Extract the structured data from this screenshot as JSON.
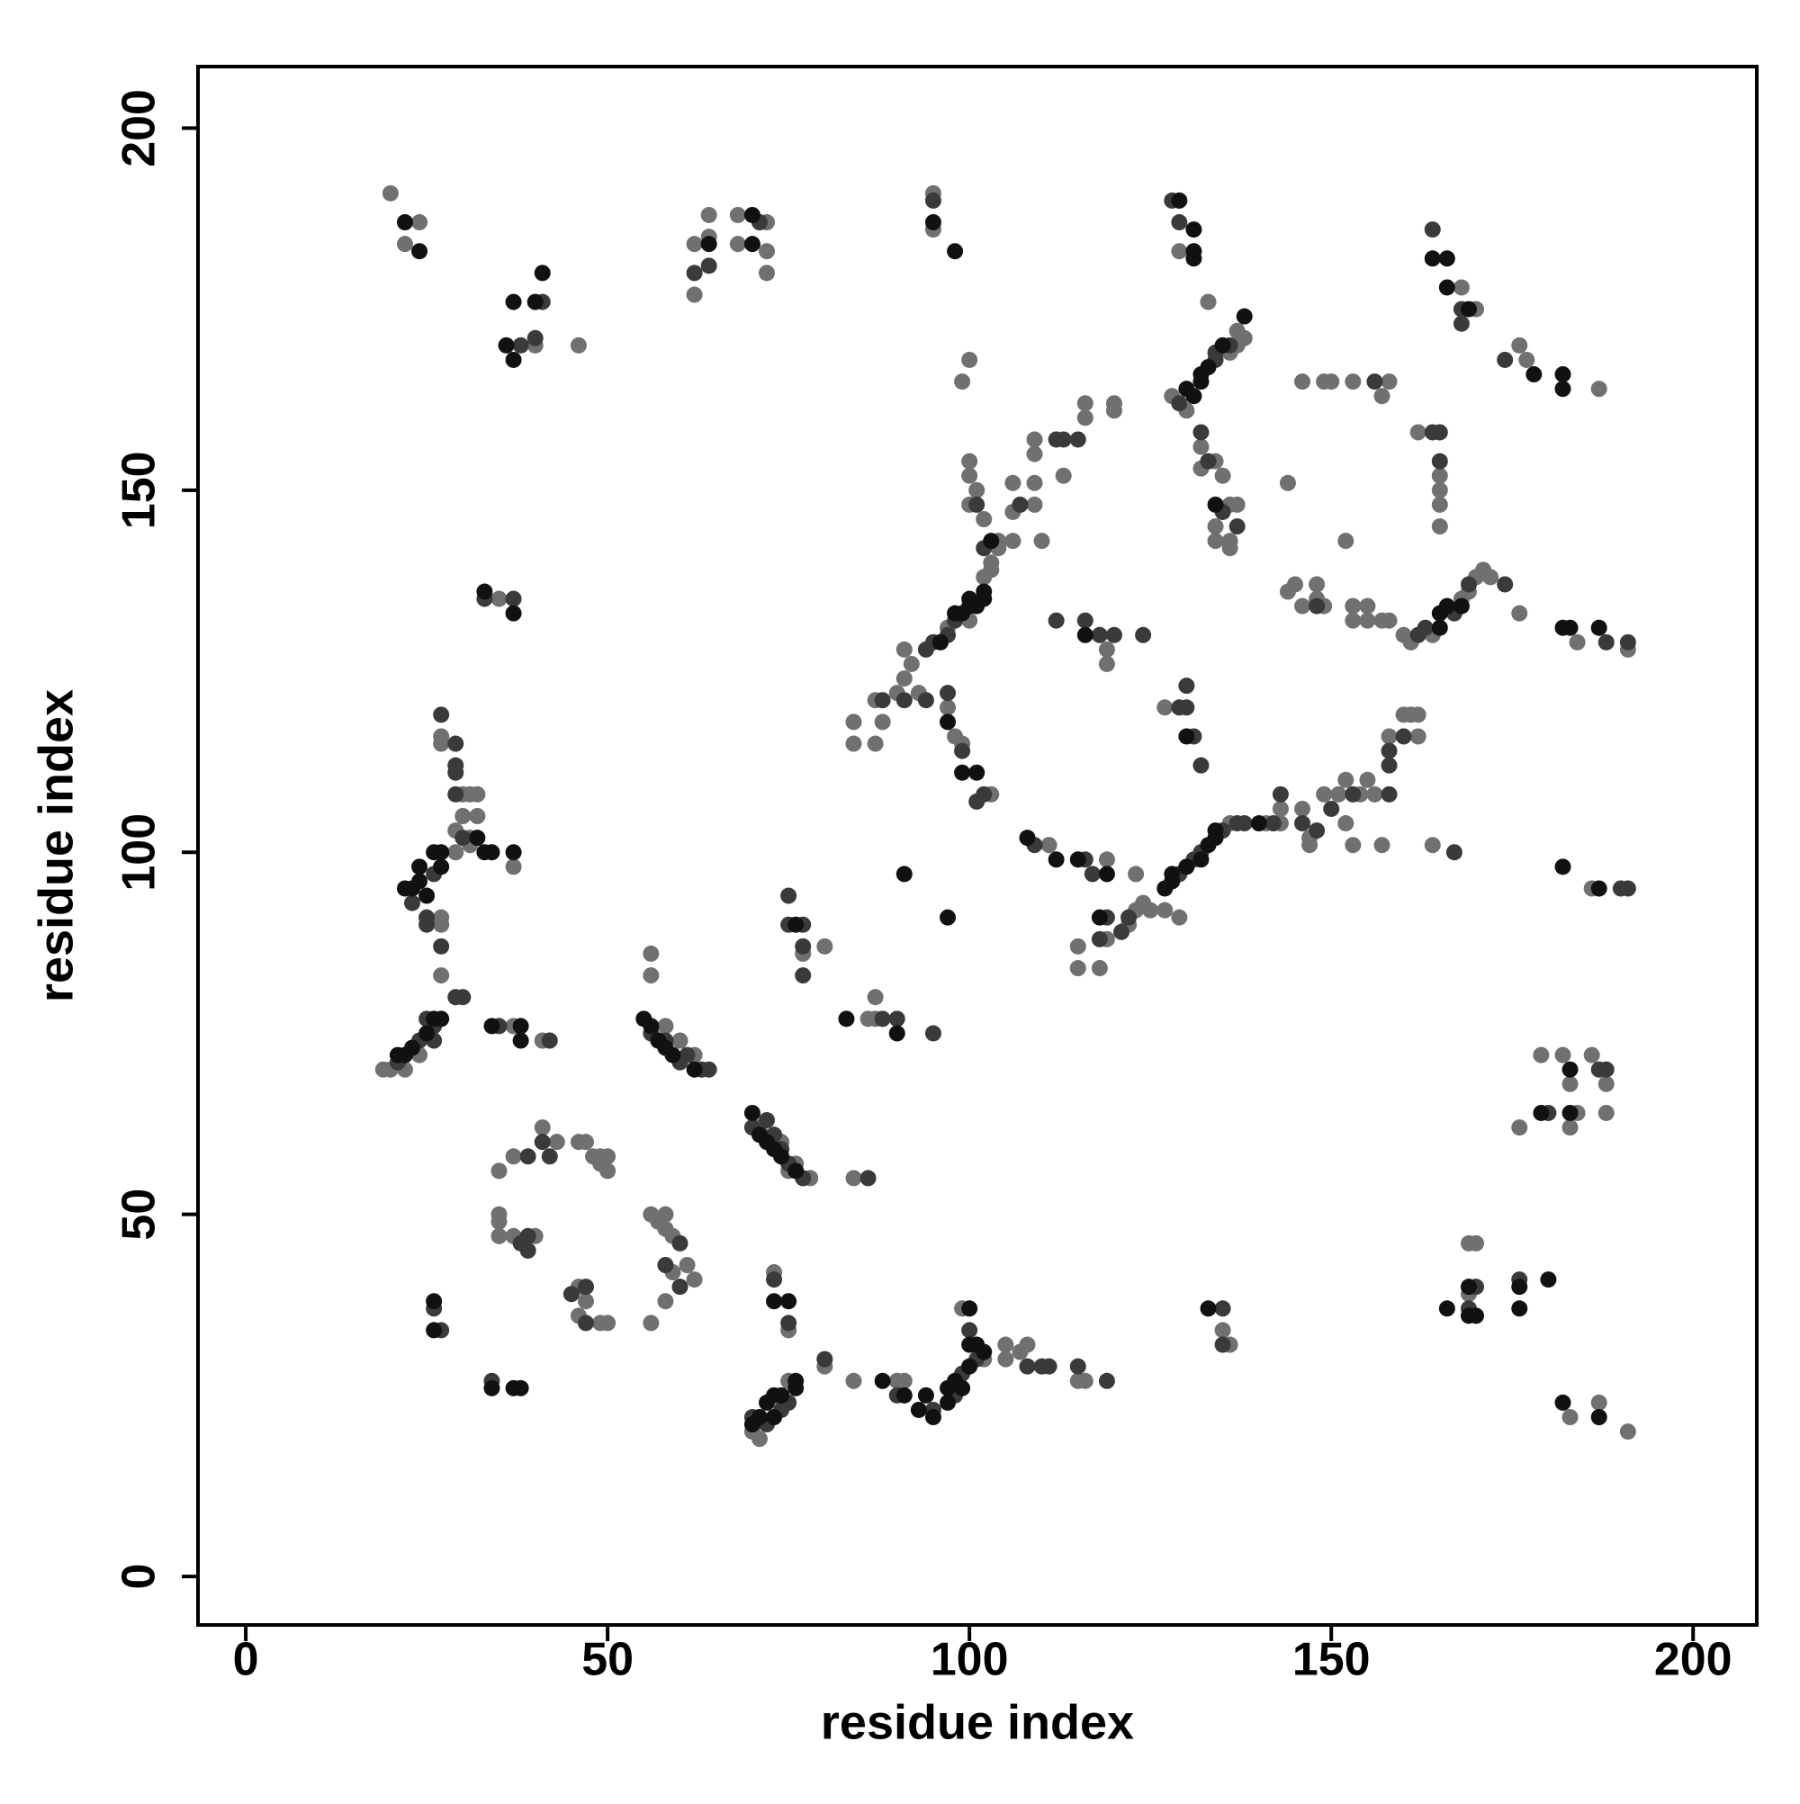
{
  "chart_data": {
    "type": "scatter",
    "xlabel": "residue index",
    "ylabel": "residue index",
    "xlim": [
      -6.6,
      208.8
    ],
    "ylim": [
      -6.7,
      208.5
    ],
    "xticks": [
      0,
      50,
      100,
      150,
      200
    ],
    "yticks": [
      0,
      50,
      100,
      150,
      200
    ],
    "grid": false,
    "series": [
      {
        "color": "#707070",
        "x": [
          20,
          24,
          22,
          40,
          46,
          62,
          62,
          64,
          64,
          68,
          68,
          72,
          72,
          72,
          95,
          95,
          129,
          168,
          170,
          176,
          177,
          187,
          128,
          130,
          137,
          137,
          138,
          136,
          133,
          132,
          132,
          134,
          134,
          134,
          136,
          136,
          137,
          136,
          135,
          162,
          165,
          165,
          165,
          165,
          146,
          149,
          150,
          153,
          158,
          157,
          144,
          152,
          145,
          144,
          146,
          148,
          148,
          149,
          153,
          153,
          155,
          155,
          157,
          158,
          160,
          161,
          164,
          168,
          169,
          170,
          171,
          172,
          176,
          184,
          191,
          84,
          84,
          87,
          87,
          88,
          90,
          91,
          92,
          91,
          97,
          100,
          102,
          103,
          103,
          104,
          101,
          100,
          100,
          100,
          102,
          104,
          106,
          106,
          106,
          109,
          109,
          109,
          109,
          110,
          113,
          116,
          116,
          120,
          120,
          93,
          97,
          99,
          100,
          98,
          99,
          103,
          111,
          119,
          123,
          119,
          123,
          124,
          125,
          127,
          129,
          115,
          115,
          118,
          122,
          136,
          141,
          143,
          143,
          146,
          147,
          147,
          149,
          151,
          152,
          152,
          153,
          154,
          155,
          156,
          157,
          158,
          160,
          161,
          162,
          162,
          164,
          119,
          119,
          127,
          27,
          27,
          30,
          31,
          32,
          30,
          32,
          29,
          31,
          31,
          29,
          27,
          27,
          27,
          37,
          37,
          41,
          19,
          20,
          22,
          24,
          35,
          58,
          60,
          62,
          56,
          56,
          71,
          74,
          75,
          76,
          78,
          77,
          80,
          86,
          87,
          87,
          84,
          35,
          37,
          41,
          43,
          46,
          47,
          48,
          49,
          50,
          50,
          49,
          35,
          35,
          35,
          37,
          40,
          56,
          57,
          58,
          58,
          59,
          59,
          61,
          62,
          58,
          56,
          46,
          47,
          46,
          49,
          50,
          70,
          71,
          75,
          73,
          75,
          80,
          84,
          90,
          91,
          99,
          102,
          105,
          105,
          108,
          107,
          115,
          116,
          135,
          136,
          169,
          169,
          170,
          183,
          187,
          191,
          176,
          179,
          182,
          183,
          184,
          183,
          186,
          188,
          188,
          186
        ],
        "values": [
          191,
          187,
          184,
          170,
          170,
          177,
          184,
          185,
          188,
          188,
          184,
          187,
          183,
          180,
          191,
          186,
          183,
          178,
          175,
          170,
          168,
          164,
          163,
          161,
          170,
          172,
          171,
          169,
          176,
          156,
          153,
          154,
          145,
          143,
          148,
          143,
          148,
          142,
          152,
          158,
          152,
          150,
          148,
          145,
          165,
          165,
          165,
          165,
          165,
          163,
          151,
          143,
          137,
          136,
          134,
          137,
          135,
          134,
          134,
          132,
          134,
          132,
          132,
          132,
          130,
          129,
          130,
          135,
          136,
          138,
          139,
          138,
          133,
          129,
          128,
          118,
          115,
          115,
          121,
          118,
          122,
          124,
          126,
          128,
          131,
          132,
          138,
          139,
          140,
          142,
          150,
          152,
          154,
          148,
          146,
          143,
          143,
          147,
          151,
          148,
          151,
          155,
          157,
          143,
          152,
          160,
          162,
          161,
          162,
          122,
          120,
          165,
          168,
          116,
          115,
          108,
          101,
          99,
          97,
          88,
          92,
          93,
          92,
          92,
          91,
          87,
          84,
          84,
          90,
          104,
          104,
          104,
          106,
          106,
          102,
          101,
          108,
          108,
          104,
          110,
          101,
          108,
          110,
          108,
          101,
          116,
          119,
          119,
          116,
          119,
          101,
          128,
          126,
          120,
          116,
          115,
          108,
          108,
          108,
          105,
          105,
          103,
          102,
          101,
          100,
          91,
          90,
          83,
          98,
          76,
          74,
          70,
          70,
          70,
          72,
          135,
          76,
          74,
          72,
          86,
          83,
          62,
          60,
          56,
          57,
          55,
          86,
          87,
          77,
          77,
          80,
          55,
          56,
          58,
          62,
          60,
          60,
          60,
          58,
          58,
          58,
          56,
          57,
          50,
          49,
          47,
          47,
          47,
          50,
          49,
          50,
          48,
          47,
          42,
          43,
          41,
          38,
          35,
          40,
          38,
          36,
          35,
          35,
          20,
          19,
          27,
          42,
          34,
          29,
          27,
          27,
          27,
          37,
          30,
          32,
          30,
          32,
          31,
          27,
          27,
          34,
          32,
          39,
          46,
          46,
          22,
          24,
          20,
          62,
          72,
          72,
          68,
          64,
          62,
          72,
          68,
          64,
          95
        ]
      },
      {
        "color": "#3a3a3a",
        "x": [
          41,
          40,
          38,
          62,
          64,
          71,
          95,
          128,
          129,
          164,
          168,
          168,
          174,
          129,
          134,
          134,
          136,
          132,
          133,
          135,
          137,
          164,
          165,
          165,
          156,
          148,
          162,
          163,
          167,
          169,
          174,
          188,
          191,
          88,
          91,
          94,
          95,
          97,
          98,
          102,
          101,
          107,
          112,
          113,
          115,
          94,
          97,
          99,
          101,
          102,
          109,
          116,
          117,
          119,
          118,
          121,
          122,
          129,
          131,
          132,
          135,
          137,
          138,
          142,
          143,
          146,
          148,
          150,
          153,
          158,
          158,
          158,
          160,
          167,
          112,
          116,
          118,
          120,
          124,
          129,
          130,
          130,
          131,
          132,
          27,
          29,
          29,
          29,
          29,
          30,
          26,
          23,
          25,
          25,
          27,
          29,
          30,
          35,
          42,
          21,
          24,
          26,
          25,
          26,
          33,
          37,
          56,
          58,
          60,
          61,
          63,
          64,
          70,
          72,
          75,
          77,
          73,
          74,
          75,
          75,
          77,
          77,
          77,
          88,
          90,
          95,
          86,
          39,
          41,
          42,
          38,
          39,
          39,
          60,
          58,
          60,
          45,
          47,
          47,
          26,
          27,
          34,
          70,
          72,
          74,
          75,
          73,
          75,
          80,
          90,
          95,
          98,
          99,
          100,
          101,
          108,
          110,
          111,
          115,
          119,
          135,
          135,
          169,
          170,
          176,
          180,
          187,
          188,
          190,
          191
        ],
        "values": [
          176,
          171,
          170,
          180,
          181,
          187,
          190,
          190,
          187,
          186,
          175,
          173,
          168,
          162,
          168,
          169,
          170,
          158,
          154,
          147,
          145,
          158,
          158,
          154,
          165,
          134,
          130,
          131,
          133,
          137,
          137,
          129,
          129,
          121,
          121,
          128,
          129,
          130,
          132,
          142,
          148,
          148,
          157,
          157,
          157,
          121,
          122,
          114,
          107,
          108,
          101,
          99,
          97,
          91,
          88,
          89,
          91,
          97,
          99,
          100,
          103,
          104,
          104,
          104,
          108,
          104,
          103,
          106,
          108,
          108,
          112,
          114,
          116,
          100,
          132,
          132,
          130,
          130,
          130,
          120,
          123,
          120,
          116,
          112,
          119,
          115,
          112,
          111,
          108,
          102,
          97,
          93,
          91,
          90,
          87,
          80,
          80,
          76,
          74,
          71,
          74,
          76,
          77,
          74,
          135,
          135,
          75,
          74,
          71,
          72,
          70,
          70,
          62,
          63,
          57,
          55,
          61,
          59,
          94,
          90,
          90,
          87,
          83,
          77,
          77,
          75,
          55,
          58,
          60,
          58,
          46,
          47,
          45,
          46,
          43,
          40,
          39,
          40,
          35,
          37,
          34,
          27,
          22,
          21,
          23,
          24,
          41,
          35,
          30,
          25,
          23,
          25,
          28,
          34,
          30,
          29,
          29,
          29,
          29,
          27,
          37,
          32,
          37,
          40,
          41,
          64,
          70,
          70,
          95,
          95
        ]
      },
      {
        "color": "#111111",
        "x": [
          22,
          24,
          37,
          40,
          41,
          36,
          37,
          64,
          70,
          70,
          95,
          98,
          129,
          131,
          131,
          131,
          164,
          166,
          166,
          169,
          178,
          182,
          182,
          130,
          131,
          132,
          132,
          133,
          135,
          138,
          134,
          165,
          165,
          166,
          168,
          182,
          183,
          187,
          96,
          98,
          99,
          100,
          100,
          101,
          102,
          102,
          103,
          116,
          130,
          97,
          99,
          101,
          91,
          97,
          108,
          112,
          115,
          119,
          118,
          127,
          128,
          128,
          130,
          132,
          133,
          134,
          134,
          140,
          32,
          33,
          34,
          27,
          26,
          27,
          24,
          24,
          23,
          22,
          25,
          37,
          34,
          38,
          38,
          21,
          22,
          23,
          25,
          26,
          27,
          33,
          37,
          55,
          56,
          57,
          58,
          59,
          62,
          70,
          71,
          72,
          73,
          74,
          76,
          76,
          83,
          90,
          26,
          26,
          34,
          37,
          38,
          70,
          71,
          72,
          73,
          73,
          74,
          76,
          76,
          73,
          75,
          88,
          91,
          93,
          94,
          95,
          97,
          97,
          98,
          99,
          100,
          100,
          100,
          101,
          102,
          133,
          166,
          169,
          170,
          169,
          176,
          176,
          180,
          182,
          187,
          179,
          183,
          183,
          182,
          187
        ],
        "values": [
          187,
          183,
          176,
          176,
          180,
          170,
          168,
          184,
          188,
          184,
          187,
          183,
          190,
          186,
          183,
          182,
          182,
          182,
          178,
          175,
          166,
          166,
          164,
          164,
          163,
          165,
          166,
          167,
          170,
          174,
          148,
          131,
          133,
          134,
          134,
          131,
          131,
          131,
          129,
          133,
          133,
          134,
          135,
          134,
          135,
          136,
          143,
          130,
          116,
          118,
          111,
          111,
          97,
          91,
          102,
          99,
          99,
          97,
          91,
          95,
          96,
          97,
          98,
          99,
          101,
          102,
          103,
          104,
          102,
          100,
          100,
          100,
          100,
          98,
          98,
          96,
          95,
          95,
          94,
          100,
          76,
          76,
          74,
          72,
          72,
          73,
          75,
          77,
          77,
          136,
          133,
          77,
          76,
          74,
          73,
          72,
          70,
          64,
          61,
          60,
          59,
          58,
          56,
          90,
          77,
          75,
          38,
          34,
          26,
          26,
          26,
          21,
          22,
          24,
          22,
          25,
          25,
          26,
          27,
          38,
          38,
          27,
          25,
          23,
          25,
          22,
          26,
          24,
          27,
          26,
          29,
          32,
          37,
          32,
          31,
          37,
          37,
          36,
          36,
          40,
          40,
          37,
          41,
          24,
          22,
          64,
          70,
          64,
          98,
          95
        ]
      }
    ]
  }
}
